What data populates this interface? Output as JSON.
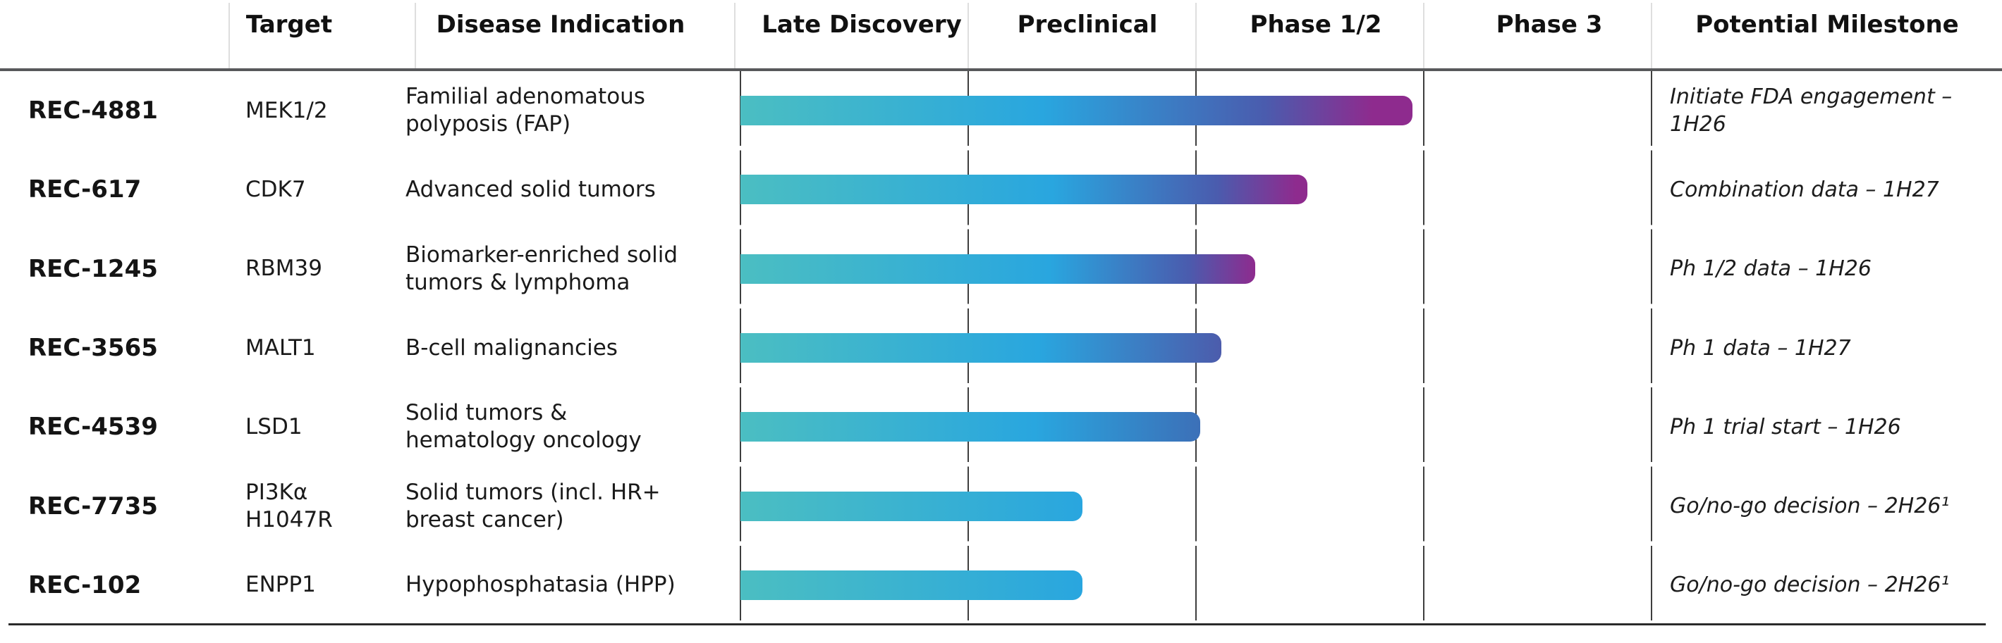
{
  "header": {
    "columns": [
      "Target",
      "Disease Indication",
      "Late Discovery",
      "Preclinical",
      "Phase 1/2",
      "Phase 3",
      "Potential Milestone"
    ]
  },
  "style": {
    "bar_teal": "#4BBEC2",
    "bar_blue": "#29A6DF",
    "bar_indigo": "#4A5CAE",
    "bar_purple": "#8E2B8E",
    "grid_color": "#3e3e3e",
    "header_rule_color": "#58595b"
  },
  "chart_data": {
    "type": "gantt",
    "phase_columns": [
      "Late Discovery",
      "Preclinical",
      "Phase 1/2",
      "Phase 3"
    ],
    "progress_scale": [
      0,
      4
    ],
    "rows": [
      {
        "name": "REC-4881",
        "target": "MEK1/2",
        "indication": "Familial adenomatous\npolyposis (FAP)",
        "progress": 2.95,
        "milestone": "Initiate FDA engagement –\n1H26",
        "gradient": [
          [
            "#4BBEC2",
            0
          ],
          [
            "#29A6DF",
            45
          ],
          [
            "#4A5CAE",
            78
          ],
          [
            "#8E2B8E",
            94
          ]
        ]
      },
      {
        "name": "REC-617",
        "target": "CDK7",
        "indication": "Advanced solid tumors",
        "progress": 2.49,
        "milestone": "Combination data – 1H27",
        "gradient": [
          [
            "#4BBEC2",
            0
          ],
          [
            "#29A6DF",
            55
          ],
          [
            "#4A5CAE",
            84
          ],
          [
            "#8E2B8E",
            98
          ]
        ]
      },
      {
        "name": "REC-1245",
        "target": "RBM39",
        "indication": "Biomarker-enriched solid\ntumors & lymphoma",
        "progress": 2.26,
        "milestone": "Ph 1/2 data – 1H26",
        "gradient": [
          [
            "#4BBEC2",
            0
          ],
          [
            "#29A6DF",
            60
          ],
          [
            "#4A5CAE",
            87
          ],
          [
            "#8E2B8E",
            100
          ]
        ]
      },
      {
        "name": "REC-3565",
        "target": "MALT1",
        "indication": "B-cell malignancies",
        "progress": 2.11,
        "milestone": "Ph 1 data – 1H27",
        "gradient": [
          [
            "#4BBEC2",
            0
          ],
          [
            "#29A6DF",
            62
          ],
          [
            "#4C5CAC",
            100
          ]
        ]
      },
      {
        "name": "REC-4539",
        "target": "LSD1",
        "indication": "Solid tumors &\nhematology oncology",
        "progress": 2.02,
        "milestone": "Ph 1 trial start – 1H26",
        "gradient": [
          [
            "#4BBEC2",
            0
          ],
          [
            "#29A6DF",
            64
          ],
          [
            "#3C70B8",
            100
          ]
        ]
      },
      {
        "name": "REC-7735",
        "target": "PI3Kα\nH1047R",
        "indication": "Solid tumors (incl. HR+\nbreast cancer)",
        "progress": 1.5,
        "milestone": "Go/no-go decision – 2H26¹",
        "gradient": [
          [
            "#4BBEC2",
            0
          ],
          [
            "#29A6DF",
            100
          ]
        ]
      },
      {
        "name": "REC-102",
        "target": "ENPP1",
        "indication": "Hypophosphatasia (HPP)",
        "progress": 1.5,
        "milestone": "Go/no-go decision – 2H26¹",
        "gradient": [
          [
            "#4BBEC2",
            0
          ],
          [
            "#29A6DF",
            100
          ]
        ]
      }
    ]
  }
}
